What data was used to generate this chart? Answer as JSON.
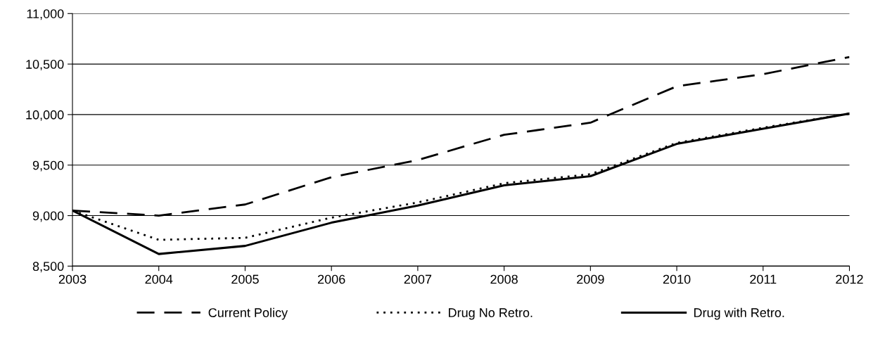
{
  "chart_data": {
    "type": "line",
    "x": [
      2003,
      2004,
      2005,
      2006,
      2007,
      2008,
      2009,
      2010,
      2011,
      2012
    ],
    "xlim": [
      2003,
      2012
    ],
    "xticks": [
      2003,
      2004,
      2005,
      2006,
      2007,
      2008,
      2009,
      2010,
      2011,
      2012
    ],
    "ylim": [
      8500,
      11000
    ],
    "yticks": [
      {
        "value": 8500,
        "label": "8,500"
      },
      {
        "value": 9000,
        "label": "9,000"
      },
      {
        "value": 9500,
        "label": "9,500"
      },
      {
        "value": 10000,
        "label": "10,000"
      },
      {
        "value": 10500,
        "label": "10,500"
      },
      {
        "value": 11000,
        "label": "11,000"
      }
    ],
    "grid": "y",
    "legend": "bottom",
    "marker": "none",
    "series": [
      {
        "name": "Current Policy",
        "color": "#000000",
        "line_style": "dashed",
        "values": [
          9050,
          9000,
          9110,
          9380,
          9550,
          9800,
          9920,
          10280,
          10400,
          10570
        ]
      },
      {
        "name": "Drug No Retro.",
        "color": "#000000",
        "line_style": "dotted",
        "values": [
          9050,
          8760,
          8780,
          8980,
          9130,
          9320,
          9410,
          9720,
          9870,
          10010
        ]
      },
      {
        "name": "Drug with Retro.",
        "color": "#000000",
        "line_style": "solid",
        "values": [
          9050,
          8620,
          8700,
          8930,
          9100,
          9300,
          9390,
          9710,
          9860,
          10010
        ]
      }
    ]
  }
}
